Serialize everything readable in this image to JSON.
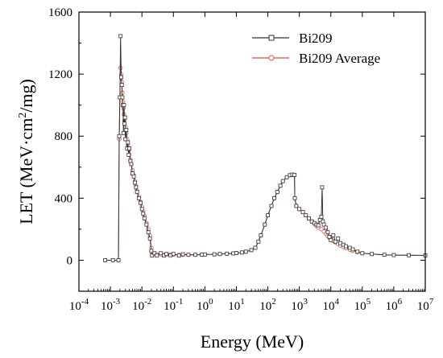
{
  "chart_data": {
    "type": "line",
    "xlabel": "Energy (MeV)",
    "ylabel_parts": [
      "LET (MeV·cm",
      "2",
      "/mg)"
    ],
    "xscale": "log",
    "xlim_exp": [
      -4,
      7
    ],
    "ylim": [
      -200,
      1600
    ],
    "yticks": [
      0,
      400,
      800,
      1200,
      1600
    ],
    "xtick_base": "10",
    "xtick_exps": [
      "-4",
      "-3",
      "-2",
      "-1",
      "0",
      "1",
      "2",
      "3",
      "4",
      "5",
      "6",
      "7"
    ],
    "legend_position": "top-right",
    "series": [
      {
        "name": "Bi209",
        "color": "#333333",
        "marker": "square-open",
        "points": [
          [
            0.00068,
            0
          ],
          [
            0.0012,
            0
          ],
          [
            0.0018,
            0
          ],
          [
            0.0019,
            800
          ],
          [
            0.002,
            1050
          ],
          [
            0.0021,
            1445
          ],
          [
            0.0022,
            1180
          ],
          [
            0.0023,
            1130
          ],
          [
            0.0024,
            1050
          ],
          [
            0.0025,
            1000
          ],
          [
            0.0026,
            820
          ],
          [
            0.0027,
            1000
          ],
          [
            0.0028,
            880
          ],
          [
            0.0029,
            920
          ],
          [
            0.003,
            780
          ],
          [
            0.0032,
            840
          ],
          [
            0.0034,
            720
          ],
          [
            0.0036,
            760
          ],
          [
            0.0038,
            680
          ],
          [
            0.004,
            720
          ],
          [
            0.0043,
            640
          ],
          [
            0.0046,
            620
          ],
          [
            0.005,
            560
          ],
          [
            0.0055,
            540
          ],
          [
            0.006,
            500
          ],
          [
            0.0065,
            470
          ],
          [
            0.007,
            440
          ],
          [
            0.008,
            400
          ],
          [
            0.009,
            370
          ],
          [
            0.01,
            330
          ],
          [
            0.011,
            300
          ],
          [
            0.012,
            270
          ],
          [
            0.014,
            230
          ],
          [
            0.016,
            180
          ],
          [
            0.018,
            140
          ],
          [
            0.02,
            60
          ],
          [
            0.021,
            30
          ],
          [
            0.025,
            45
          ],
          [
            0.03,
            30
          ],
          [
            0.04,
            45
          ],
          [
            0.05,
            30
          ],
          [
            0.06,
            40
          ],
          [
            0.08,
            32
          ],
          [
            0.1,
            40
          ],
          [
            0.15,
            30
          ],
          [
            0.2,
            38
          ],
          [
            0.3,
            35
          ],
          [
            0.5,
            35
          ],
          [
            0.8,
            36
          ],
          [
            1,
            37
          ],
          [
            2,
            38
          ],
          [
            3,
            40
          ],
          [
            5,
            42
          ],
          [
            8,
            44
          ],
          [
            10,
            46
          ],
          [
            15,
            50
          ],
          [
            20,
            55
          ],
          [
            30,
            65
          ],
          [
            40,
            80
          ],
          [
            50,
            120
          ],
          [
            60,
            160
          ],
          [
            80,
            230
          ],
          [
            100,
            290
          ],
          [
            130,
            350
          ],
          [
            160,
            400
          ],
          [
            200,
            440
          ],
          [
            250,
            480
          ],
          [
            300,
            510
          ],
          [
            400,
            535
          ],
          [
            500,
            548
          ],
          [
            600,
            552
          ],
          [
            700,
            550
          ],
          [
            720,
            400
          ],
          [
            800,
            350
          ],
          [
            1000,
            330
          ],
          [
            1300,
            310
          ],
          [
            1600,
            290
          ],
          [
            2000,
            270
          ],
          [
            2500,
            250
          ],
          [
            3000,
            240
          ],
          [
            3500,
            230
          ],
          [
            4000,
            225
          ],
          [
            4500,
            260
          ],
          [
            5000,
            280
          ],
          [
            5300,
            470
          ],
          [
            5600,
            250
          ],
          [
            6000,
            230
          ],
          [
            7000,
            210
          ],
          [
            8000,
            180
          ],
          [
            9000,
            150
          ],
          [
            10000,
            130
          ],
          [
            12000,
            160
          ],
          [
            14000,
            120
          ],
          [
            17000,
            140
          ],
          [
            20000,
            110
          ],
          [
            25000,
            100
          ],
          [
            30000,
            90
          ],
          [
            40000,
            80
          ],
          [
            50000,
            70
          ],
          [
            70000,
            55
          ],
          [
            100000,
            45
          ],
          [
            200000,
            40
          ],
          [
            500000,
            35
          ],
          [
            1000000,
            33
          ],
          [
            3000000,
            32
          ],
          [
            10000000,
            31
          ]
        ]
      },
      {
        "name": "Bi209 Average",
        "color": "#e05545",
        "marker": "circle-open",
        "points": [
          [
            0.00068,
            0
          ],
          [
            0.0012,
            0
          ],
          [
            0.0018,
            0
          ],
          [
            0.0019,
            780
          ],
          [
            0.002,
            1050
          ],
          [
            0.0021,
            1240
          ],
          [
            0.0022,
            1200
          ],
          [
            0.0023,
            1150
          ],
          [
            0.0024,
            1080
          ],
          [
            0.0025,
            1020
          ],
          [
            0.0026,
            980
          ],
          [
            0.0027,
            940
          ],
          [
            0.0028,
            900
          ],
          [
            0.003,
            860
          ],
          [
            0.0032,
            820
          ],
          [
            0.0034,
            780
          ],
          [
            0.0036,
            740
          ],
          [
            0.0038,
            710
          ],
          [
            0.004,
            680
          ],
          [
            0.0043,
            650
          ],
          [
            0.0046,
            620
          ],
          [
            0.005,
            580
          ],
          [
            0.0055,
            550
          ],
          [
            0.006,
            510
          ],
          [
            0.0065,
            480
          ],
          [
            0.007,
            450
          ],
          [
            0.008,
            410
          ],
          [
            0.009,
            375
          ],
          [
            0.01,
            345
          ],
          [
            0.011,
            315
          ],
          [
            0.012,
            285
          ],
          [
            0.014,
            240
          ],
          [
            0.016,
            200
          ],
          [
            0.018,
            160
          ],
          [
            0.02,
            80
          ],
          [
            0.021,
            40
          ],
          [
            0.025,
            40
          ],
          [
            0.03,
            38
          ],
          [
            0.04,
            38
          ],
          [
            0.05,
            37
          ],
          [
            0.06,
            37
          ],
          [
            0.08,
            36
          ],
          [
            0.1,
            36
          ],
          [
            0.15,
            35
          ],
          [
            0.2,
            35
          ],
          [
            0.3,
            35
          ],
          [
            0.5,
            35
          ],
          [
            0.8,
            36
          ],
          [
            1,
            37
          ],
          [
            2,
            38
          ],
          [
            3,
            40
          ],
          [
            5,
            42
          ],
          [
            8,
            44
          ],
          [
            10,
            46
          ],
          [
            15,
            50
          ],
          [
            20,
            55
          ],
          [
            30,
            65
          ],
          [
            40,
            80
          ],
          [
            50,
            120
          ],
          [
            60,
            160
          ],
          [
            80,
            230
          ],
          [
            100,
            290
          ],
          [
            130,
            350
          ],
          [
            160,
            400
          ],
          [
            200,
            440
          ],
          [
            250,
            480
          ],
          [
            300,
            510
          ],
          [
            400,
            535
          ],
          [
            500,
            548
          ],
          [
            600,
            550
          ],
          [
            700,
            548
          ],
          [
            720,
            400
          ],
          [
            800,
            350
          ],
          [
            1000,
            330
          ],
          [
            1300,
            310
          ],
          [
            1600,
            290
          ],
          [
            2000,
            270
          ],
          [
            2500,
            250
          ],
          [
            3000,
            235
          ],
          [
            3500,
            220
          ],
          [
            4000,
            210
          ],
          [
            5000,
            200
          ],
          [
            6000,
            185
          ],
          [
            7000,
            170
          ],
          [
            8000,
            155
          ],
          [
            9000,
            145
          ],
          [
            10000,
            135
          ],
          [
            12000,
            125
          ],
          [
            14000,
            115
          ],
          [
            17000,
            105
          ],
          [
            20000,
            95
          ],
          [
            25000,
            85
          ],
          [
            30000,
            78
          ],
          [
            40000,
            68
          ],
          [
            50000,
            60
          ],
          [
            70000,
            52
          ],
          [
            100000,
            45
          ],
          [
            200000,
            40
          ],
          [
            500000,
            35
          ],
          [
            1000000,
            33
          ],
          [
            3000000,
            32
          ],
          [
            10000000,
            31
          ]
        ]
      }
    ]
  }
}
